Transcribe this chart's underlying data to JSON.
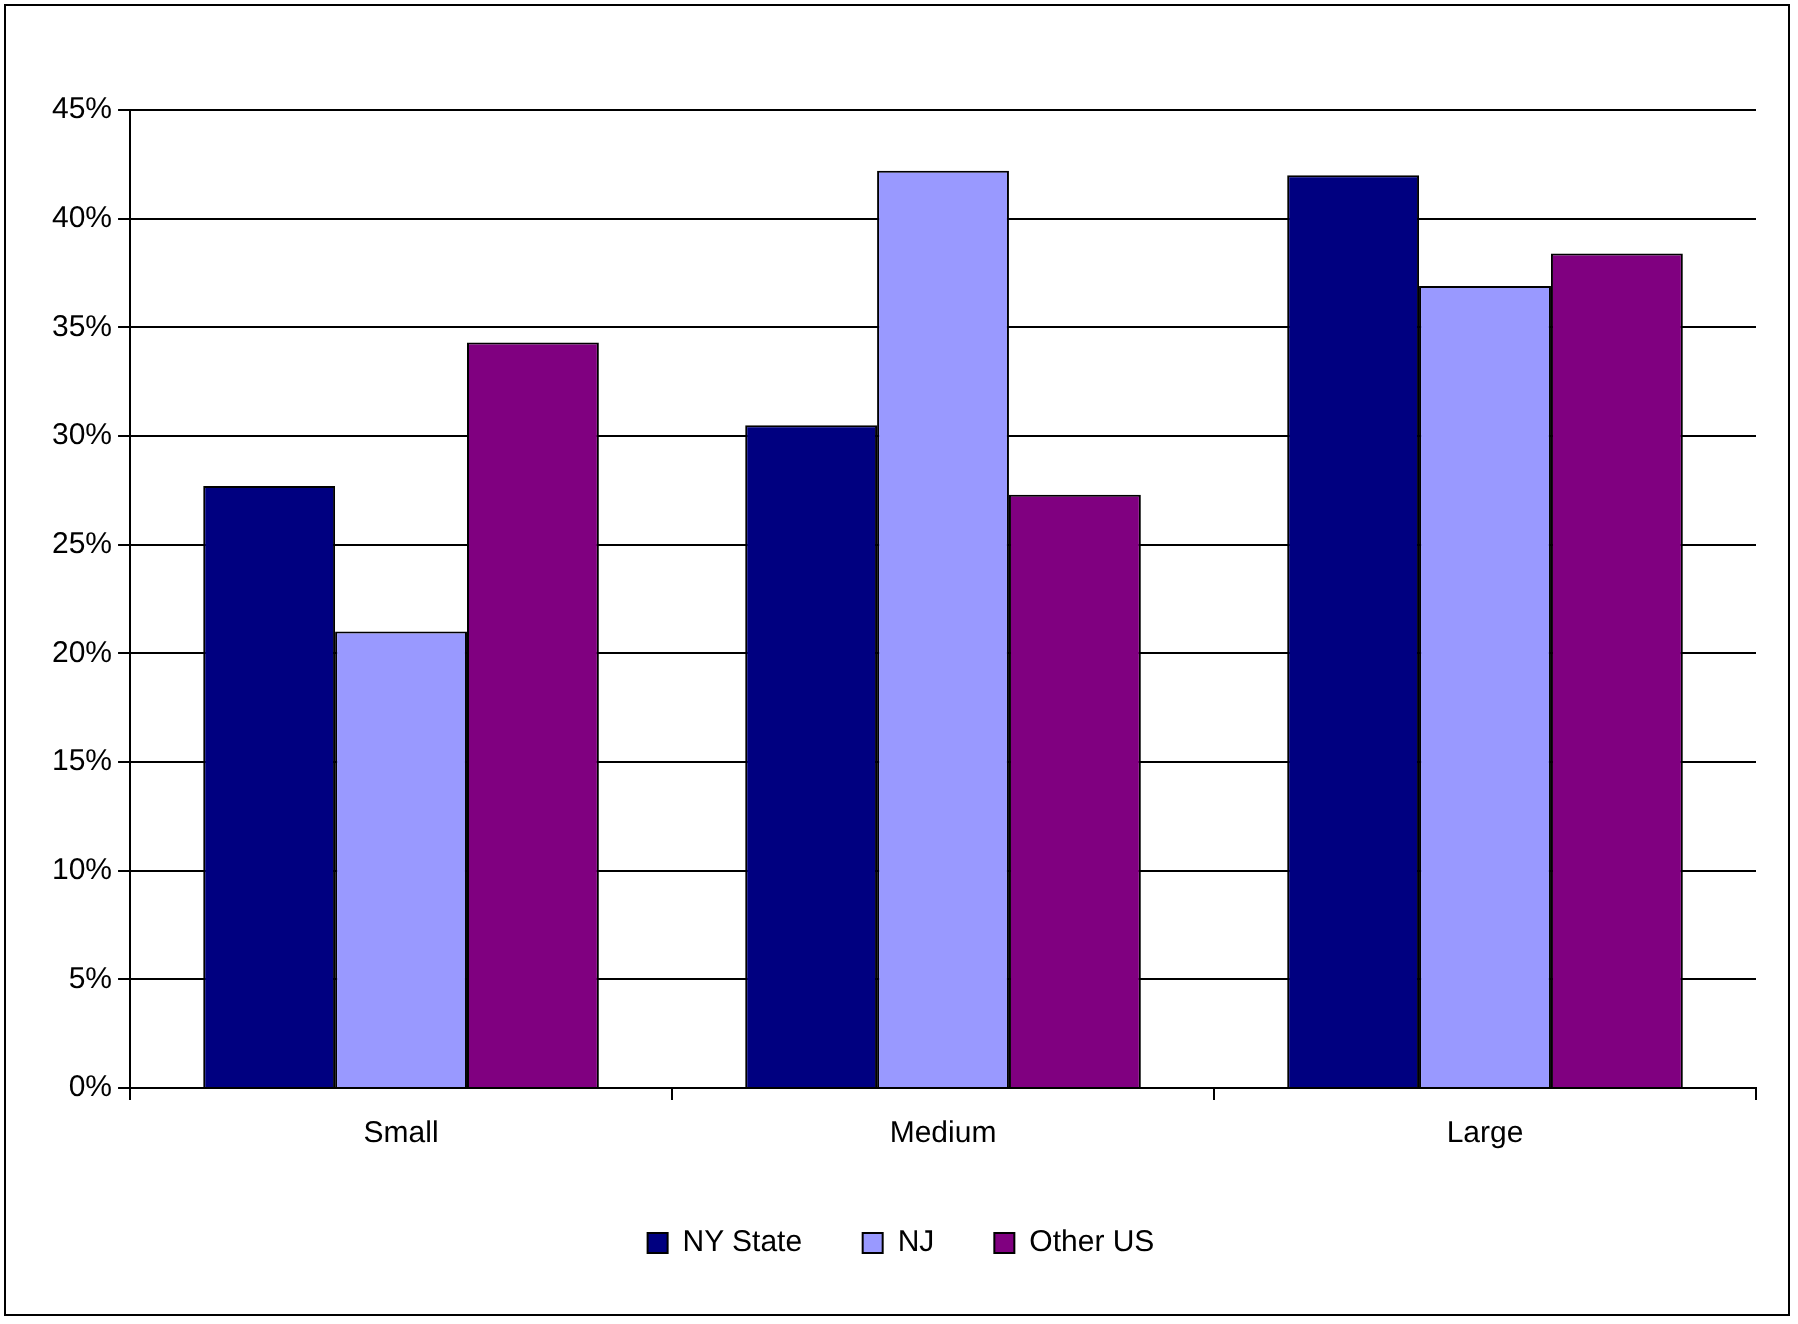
{
  "chart_data": {
    "type": "bar",
    "categories": [
      "Small",
      "Medium",
      "Large"
    ],
    "series": [
      {
        "name": "NY State",
        "color": "#000080",
        "values": [
          27.7,
          30.5,
          42.0
        ]
      },
      {
        "name": "NJ",
        "color": "#9999ff",
        "values": [
          21.0,
          42.2,
          36.9
        ]
      },
      {
        "name": "Other US",
        "color": "#800080",
        "values": [
          34.3,
          27.3,
          38.4
        ]
      }
    ],
    "ylim": [
      0,
      45
    ],
    "yticks": [
      {
        "value": 0,
        "label": "0%"
      },
      {
        "value": 5,
        "label": "5%"
      },
      {
        "value": 10,
        "label": "10%"
      },
      {
        "value": 15,
        "label": "15%"
      },
      {
        "value": 20,
        "label": "20%"
      },
      {
        "value": 25,
        "label": "25%"
      },
      {
        "value": 30,
        "label": "30%"
      },
      {
        "value": 35,
        "label": "35%"
      },
      {
        "value": 40,
        "label": "40%"
      },
      {
        "value": 45,
        "label": "45%"
      }
    ],
    "grid": "y",
    "legend": "bottom"
  }
}
